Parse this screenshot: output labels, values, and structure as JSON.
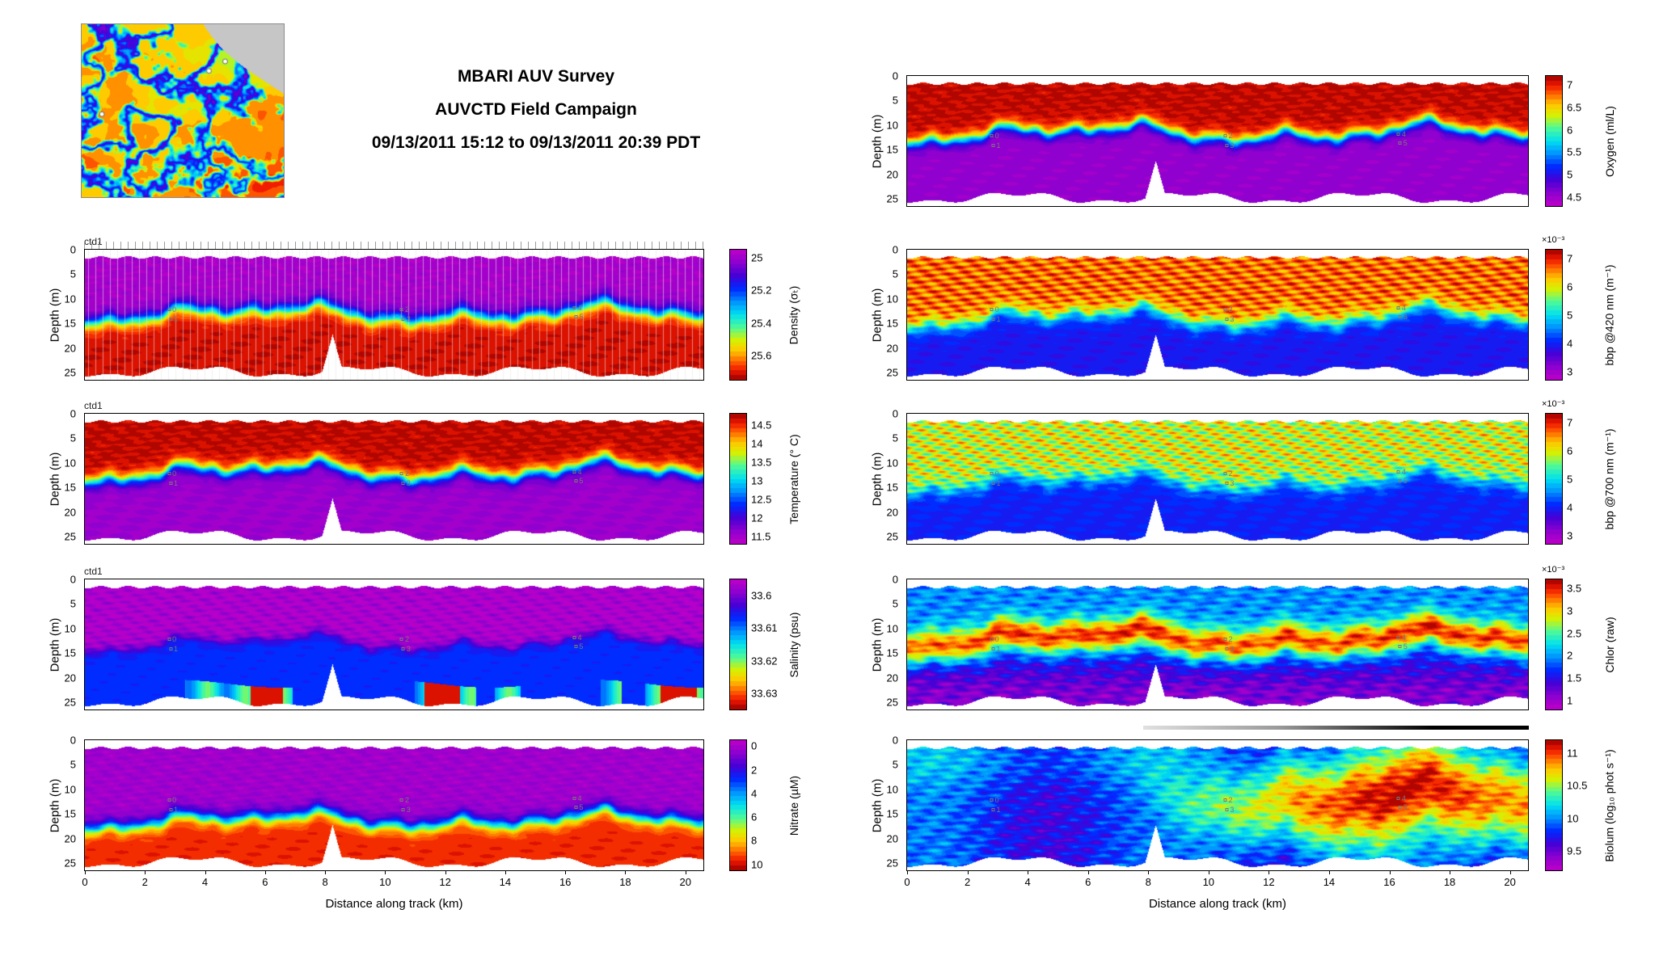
{
  "title": {
    "line1": "MBARI AUV Survey",
    "line2": "AUVCTD Field Campaign",
    "line3": "09/13/2011 15:12 to 09/13/2011 20:39 PDT"
  },
  "x_axis": {
    "label": "Distance along track (km)",
    "ticks": [
      "0",
      "2",
      "4",
      "6",
      "8",
      "10",
      "12",
      "14",
      "16",
      "18",
      "20"
    ],
    "range": [
      0,
      20.6
    ]
  },
  "y_axis": {
    "label": "Depth (m)",
    "ticks": [
      "0",
      "5",
      "10",
      "15",
      "20",
      "25"
    ],
    "range": [
      0,
      26.5
    ]
  },
  "annotations": [
    {
      "x_km": 2.9,
      "depth_m": 12.2,
      "label": "0"
    },
    {
      "x_km": 2.95,
      "depth_m": 14.2,
      "label": "1"
    },
    {
      "x_km": 10.65,
      "depth_m": 12.2,
      "label": "2"
    },
    {
      "x_km": 10.7,
      "depth_m": 14.2,
      "label": "3"
    },
    {
      "x_km": 16.4,
      "depth_m": 11.9,
      "label": "4"
    },
    {
      "x_km": 16.45,
      "depth_m": 13.6,
      "label": "5"
    }
  ],
  "config": {
    "contour_levels": 28,
    "background": "#ffffff",
    "colormap": [
      [
        0.0,
        "#c000c8"
      ],
      [
        0.1,
        "#8a00cf"
      ],
      [
        0.2,
        "#4400d6"
      ],
      [
        0.3,
        "#0028ff"
      ],
      [
        0.4,
        "#0090ff"
      ],
      [
        0.5,
        "#00e0f0"
      ],
      [
        0.6,
        "#50fa96"
      ],
      [
        0.7,
        "#d8f000"
      ],
      [
        0.78,
        "#ffc800"
      ],
      [
        0.86,
        "#ff6400"
      ],
      [
        0.93,
        "#f01800"
      ],
      [
        1.0,
        "#9c0000"
      ]
    ]
  },
  "map_inset": {
    "land_mask_color": "#c6c6c6",
    "dot_color": "#ffffff",
    "dots": [
      [
        0.63,
        0.27
      ],
      [
        0.71,
        0.215
      ],
      [
        0.1,
        0.52
      ]
    ]
  },
  "progress_bar": {
    "gradient": [
      "#e0e0e0",
      "#9a9a9a",
      "#000000"
    ]
  },
  "chart_data": [
    {
      "id": "density",
      "type": "heatmap",
      "column": "left",
      "row": 0,
      "corner_label": "ctd1",
      "show_x_ticks": false,
      "track_lines": true,
      "colorbar": {
        "label": "Density (σₜ)",
        "multiplier": null,
        "min_at_top": true,
        "vmin": 24.95,
        "vmax": 25.75,
        "ticks": [
          {
            "v": 25,
            "label": "25"
          },
          {
            "v": 25.2,
            "label": "25.2"
          },
          {
            "v": 25.4,
            "label": "25.4"
          },
          {
            "v": 25.6,
            "label": "25.6"
          }
        ]
      },
      "field_model": {
        "mode": "sigmoid",
        "top": 0.045,
        "bot": 0.96,
        "base": 13.0,
        "amp": 2.3,
        "w": 2.8,
        "noise": 0.05,
        "patch": 0.02,
        "seed": 1
      }
    },
    {
      "id": "temperature",
      "type": "heatmap",
      "column": "left",
      "row": 1,
      "corner_label": "ctd1",
      "show_x_ticks": false,
      "track_lines": false,
      "colorbar": {
        "label": "Temperature (° C)",
        "multiplier": null,
        "min_at_top": false,
        "vmin": 11.3,
        "vmax": 14.8,
        "ticks": [
          {
            "v": 14.5,
            "label": "14.5"
          },
          {
            "v": 14,
            "label": "14"
          },
          {
            "v": 13.5,
            "label": "13.5"
          },
          {
            "v": 13,
            "label": "13"
          },
          {
            "v": 12.5,
            "label": "12.5"
          },
          {
            "v": 12,
            "label": "12"
          },
          {
            "v": 11.5,
            "label": "11.5"
          }
        ]
      },
      "field_model": {
        "mode": "sigmoid",
        "top": 0.97,
        "bot": 0.07,
        "base": 11.8,
        "amp": 2.5,
        "w": 2.5,
        "noise": 0.05,
        "patch": 0.03,
        "seed": 2
      }
    },
    {
      "id": "salinity",
      "type": "heatmap",
      "column": "left",
      "row": 2,
      "corner_label": "ctd1",
      "show_x_ticks": false,
      "track_lines": false,
      "colorbar": {
        "label": "Salinity (psu)",
        "multiplier": null,
        "min_at_top": true,
        "vmin": 33.595,
        "vmax": 33.635,
        "ticks": [
          {
            "v": 33.6,
            "label": "33.6"
          },
          {
            "v": 33.61,
            "label": "33.61"
          },
          {
            "v": 33.62,
            "label": "33.62"
          },
          {
            "v": 33.63,
            "label": "33.63"
          }
        ]
      },
      "field_model": {
        "mode": "sigmoid",
        "top": 0.035,
        "bot": 0.3,
        "base": 12.8,
        "amp": 2.3,
        "w": 1.7,
        "noise": 0.05,
        "patch": 0.07,
        "bottom_patches": true,
        "seed": 3
      }
    },
    {
      "id": "nitrate",
      "type": "heatmap",
      "column": "left",
      "row": 3,
      "corner_label": null,
      "show_x_ticks": true,
      "track_lines": false,
      "colorbar": {
        "label": "Nitrate (µM)",
        "multiplier": null,
        "min_at_top": true,
        "vmin": -0.5,
        "vmax": 10.5,
        "ticks": [
          {
            "v": 0,
            "label": "0"
          },
          {
            "v": 2,
            "label": "2"
          },
          {
            "v": 4,
            "label": "4"
          },
          {
            "v": 6,
            "label": "6"
          },
          {
            "v": 8,
            "label": "8"
          },
          {
            "v": 10,
            "label": "10"
          }
        ]
      },
      "field_model": {
        "mode": "sigmoid",
        "top": 0.06,
        "bot": 0.92,
        "base": 16.3,
        "amp": 2.2,
        "w": 2.6,
        "noise": 0.05,
        "patch": 0.03,
        "seed": 4
      }
    },
    {
      "id": "oxygen",
      "type": "heatmap",
      "column": "right",
      "row": 0,
      "corner_label": null,
      "show_x_ticks": false,
      "track_lines": false,
      "colorbar": {
        "label": "Oxygen (ml/L)",
        "multiplier": null,
        "min_at_top": false,
        "vmin": 4.3,
        "vmax": 7.2,
        "ticks": [
          {
            "v": 7,
            "label": "7"
          },
          {
            "v": 6.5,
            "label": "6.5"
          },
          {
            "v": 6,
            "label": "6"
          },
          {
            "v": 5.5,
            "label": "5.5"
          },
          {
            "v": 5,
            "label": "5"
          },
          {
            "v": 4.5,
            "label": "4.5"
          }
        ]
      },
      "field_model": {
        "mode": "sigmoid",
        "top": 0.97,
        "bot": 0.08,
        "base": 11.6,
        "amp": 2.5,
        "w": 2.3,
        "noise": 0.05,
        "patch": 0.03,
        "seed": 5
      }
    },
    {
      "id": "bbp420",
      "type": "heatmap",
      "column": "right",
      "row": 1,
      "corner_label": null,
      "show_x_ticks": false,
      "track_lines": false,
      "colorbar": {
        "label": "bbp @420 nm (m⁻¹)",
        "multiplier": "×10⁻³",
        "min_at_top": false,
        "vmin": 2.7,
        "vmax": 7.3,
        "ticks": [
          {
            "v": 7,
            "label": "7"
          },
          {
            "v": 6,
            "label": "6"
          },
          {
            "v": 5,
            "label": "5"
          },
          {
            "v": 4,
            "label": "4"
          },
          {
            "v": 3,
            "label": "3"
          }
        ]
      },
      "field_model": {
        "mode": "sigmoid",
        "top": 0.86,
        "bot": 0.26,
        "base": 13.8,
        "amp": 2.6,
        "w": 2.9,
        "noise": 0.07,
        "patch": 0.13,
        "seed": 6
      }
    },
    {
      "id": "bbp700",
      "type": "heatmap",
      "column": "right",
      "row": 2,
      "corner_label": null,
      "show_x_ticks": false,
      "track_lines": false,
      "colorbar": {
        "label": "bbp @700 nm (m⁻¹)",
        "multiplier": "×10⁻³",
        "min_at_top": false,
        "vmin": 2.7,
        "vmax": 7.3,
        "ticks": [
          {
            "v": 7,
            "label": "7"
          },
          {
            "v": 6,
            "label": "6"
          },
          {
            "v": 5,
            "label": "5"
          },
          {
            "v": 4,
            "label": "4"
          },
          {
            "v": 3,
            "label": "3"
          }
        ]
      },
      "field_model": {
        "mode": "sigmoid",
        "top": 0.7,
        "bot": 0.28,
        "base": 13.8,
        "amp": 2.6,
        "w": 2.9,
        "noise": 0.07,
        "patch": 0.17,
        "seed": 7
      }
    },
    {
      "id": "chlor",
      "type": "heatmap",
      "column": "right",
      "row": 3,
      "corner_label": null,
      "show_x_ticks": false,
      "track_lines": false,
      "colorbar": {
        "label": "Chlor (raw)",
        "multiplier": "×10⁻³",
        "min_at_top": false,
        "vmin": 0.8,
        "vmax": 3.7,
        "ticks": [
          {
            "v": 3.5,
            "label": "3.5"
          },
          {
            "v": 3,
            "label": "3"
          },
          {
            "v": 2.5,
            "label": "2.5"
          },
          {
            "v": 2,
            "label": "2"
          },
          {
            "v": 1.5,
            "label": "1.5"
          },
          {
            "v": 1,
            "label": "1"
          }
        ]
      },
      "field_model": {
        "mode": "band",
        "base": 12.2,
        "amp": 2.3,
        "bw": 2.3,
        "peak": 0.56,
        "noise": 0.07,
        "patch": 0.05,
        "seed": 8
      }
    },
    {
      "id": "biolum",
      "type": "heatmap",
      "column": "right",
      "row": 4,
      "corner_label": null,
      "show_x_ticks": true,
      "track_lines": false,
      "colorbar": {
        "label": "Biolum (log₁₀ phot s⁻¹)",
        "multiplier": null,
        "min_at_top": false,
        "vmin": 9.2,
        "vmax": 11.2,
        "ticks": [
          {
            "v": 11,
            "label": "11"
          },
          {
            "v": 10.5,
            "label": "10.5"
          },
          {
            "v": 10,
            "label": "10"
          },
          {
            "v": 9.5,
            "label": "9.5"
          }
        ]
      },
      "field_model": {
        "mode": "biolum",
        "base": 12.0,
        "noise": 0.07,
        "seed": 9
      }
    }
  ]
}
